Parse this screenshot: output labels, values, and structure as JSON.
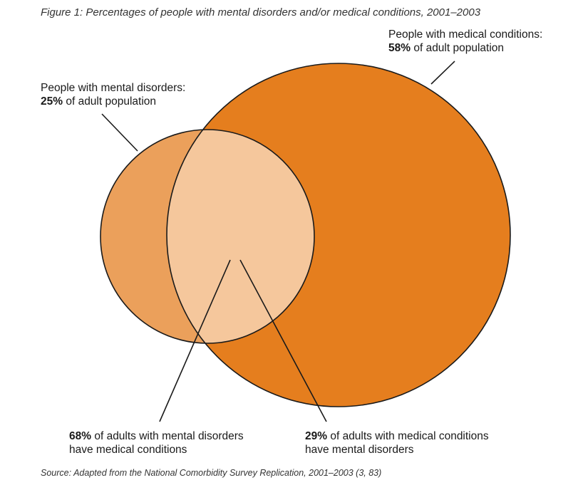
{
  "title": "Figure 1: Percentages of people with mental disorders and/or medical conditions, 2001–2003",
  "source": "Source: Adapted from the National Comorbidity Survey Replication, 2001–2003 (3, 83)",
  "colors": {
    "medical_circle": "#e57e1e",
    "mental_circle": "#eba05b",
    "overlap": "#f5c79c",
    "outline": "#1a1a1a"
  },
  "labels": {
    "medical": {
      "line1": "People with medical conditions:",
      "pct": "58%",
      "rest": " of adult population"
    },
    "mental": {
      "line1": "People with mental disorders:",
      "pct": "25%",
      "rest": " of adult population"
    },
    "mental_with_medical": {
      "pct": "68%",
      "rest": " of adults with mental disorders",
      "line2": "have medical conditions"
    },
    "medical_with_mental": {
      "pct": "29%",
      "rest": " of adults with medical conditions",
      "line2": "have mental disorders"
    }
  }
}
